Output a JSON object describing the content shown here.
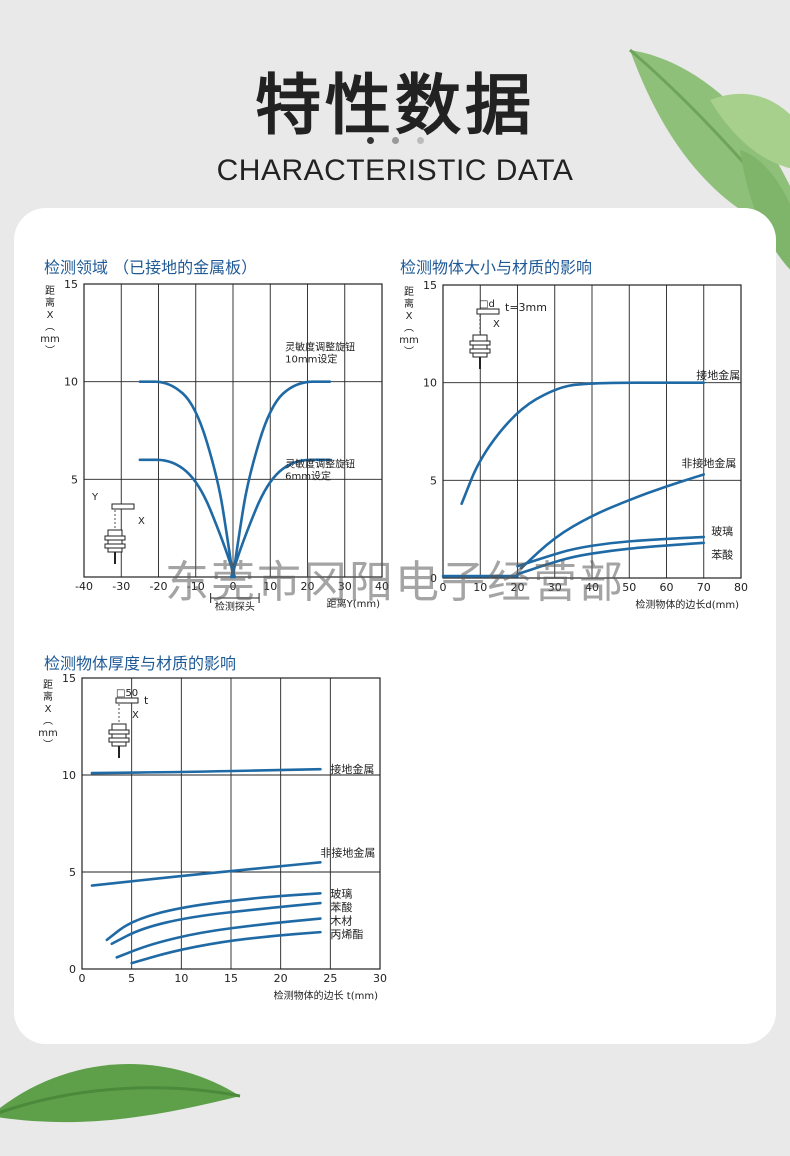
{
  "header": {
    "title_cn": "特性数据",
    "title_en": "CHARACTERISTIC DATA"
  },
  "watermark": "东莞市冈阳电子经营部",
  "colors": {
    "curve": "#1f6aa5",
    "axis": "#222222",
    "title": "#1f5a96"
  },
  "chart_data": [
    {
      "type": "line",
      "title": "检测领域 （已接地的金属板）",
      "xlabel": "距离Y(mm)",
      "ylabel_lines": [
        "距",
        "离",
        "X",
        "︵",
        "mm",
        "︶"
      ],
      "xlim": [
        -40,
        40
      ],
      "ylim": [
        0,
        15
      ],
      "x_ticks": [
        -40,
        -30,
        -20,
        -10,
        0,
        10,
        20,
        30,
        40
      ],
      "x_tick_labels": [
        "-40",
        "-30",
        "-20",
        "-10",
        "0",
        "10",
        "20",
        "30",
        "40"
      ],
      "y_ticks": [
        5,
        10,
        15
      ],
      "y_tick_labels": [
        "5",
        "10",
        "15"
      ],
      "probe_label": "检测探头",
      "probe_range": [
        -6,
        7
      ],
      "series": [
        {
          "points": [
            [
              -25,
              10
            ],
            [
              -17,
              10
            ],
            [
              -10,
              8.8
            ],
            [
              -4,
              5
            ],
            [
              -1.5,
              2
            ],
            [
              0,
              0
            ]
          ]
        },
        {
          "points": [
            [
              0,
              0
            ],
            [
              1.5,
              2
            ],
            [
              4,
              5
            ],
            [
              10,
              8.8
            ],
            [
              17,
              10
            ],
            [
              26,
              10
            ]
          ]
        },
        {
          "points": [
            [
              -25,
              6
            ],
            [
              -16,
              6
            ],
            [
              -9,
              4.8
            ],
            [
              -3,
              2
            ],
            [
              0.5,
              0
            ]
          ]
        },
        {
          "points": [
            [
              -0.5,
              0
            ],
            [
              3,
              2
            ],
            [
              9,
              4.8
            ],
            [
              16,
              6
            ],
            [
              26,
              6
            ]
          ]
        }
      ],
      "annotations": [
        {
          "lines": [
            "灵敏度调整旋钮",
            "10mm设定"
          ],
          "x": 14,
          "y": 11.6
        },
        {
          "lines": [
            "灵敏度调整旋钮",
            "6mm设定"
          ],
          "x": 14,
          "y": 5.6
        }
      ],
      "inset_labels": [
        "Y",
        "X"
      ]
    },
    {
      "type": "line",
      "title": "检测物体大小与材质的影响",
      "xlabel": "检测物体的边长d(mm)",
      "ylabel_lines": [
        "距",
        "离",
        "X",
        "︵",
        "mm",
        "︶"
      ],
      "xlim": [
        0,
        80
      ],
      "ylim": [
        0,
        15
      ],
      "x_ticks": [
        0,
        10,
        20,
        30,
        40,
        50,
        60,
        70,
        80
      ],
      "x_tick_labels": [
        "0",
        "10",
        "20",
        "30",
        "40",
        "50",
        "60",
        "70",
        "80"
      ],
      "y_ticks": [
        0,
        5,
        10,
        15
      ],
      "y_tick_labels": [
        "0",
        "5",
        "10",
        "15"
      ],
      "inset_labels": [
        "□d",
        "t=3mm",
        "X"
      ],
      "series": [
        {
          "name": "接地金属",
          "label_at": [
            68,
            10.4
          ],
          "points": [
            [
              5,
              3.8
            ],
            [
              10,
              6.2
            ],
            [
              20,
              8.6
            ],
            [
              30,
              9.7
            ],
            [
              38,
              10
            ],
            [
              70,
              10
            ]
          ]
        },
        {
          "name": "非接地金属",
          "label_at": [
            64,
            5.9
          ],
          "points": [
            [
              21,
              0.5
            ],
            [
              30,
              2.1
            ],
            [
              40,
              3.2
            ],
            [
              50,
              4.0
            ],
            [
              60,
              4.7
            ],
            [
              70,
              5.3
            ]
          ]
        },
        {
          "name": "玻璃",
          "label_at": [
            72,
            2.4
          ],
          "points": [
            [
              20,
              0.6
            ],
            [
              28,
              1.1
            ],
            [
              35,
              1.5
            ],
            [
              45,
              1.8
            ],
            [
              55,
              1.95
            ],
            [
              70,
              2.1
            ]
          ]
        },
        {
          "name": "苯酸",
          "label_at": [
            72,
            1.2
          ],
          "points": [
            [
              20,
              0.2
            ],
            [
              28,
              0.7
            ],
            [
              35,
              1.1
            ],
            [
              45,
              1.4
            ],
            [
              55,
              1.6
            ],
            [
              70,
              1.8
            ]
          ]
        },
        {
          "points": [
            [
              0,
              0.1
            ],
            [
              20,
              0.1
            ]
          ]
        }
      ]
    },
    {
      "type": "line",
      "title": "检测物体厚度与材质的影响",
      "xlabel": "检测物体的边长 t(mm)",
      "ylabel_lines": [
        "距",
        "离",
        "X",
        "︵",
        "mm",
        "︶"
      ],
      "xlim": [
        0,
        30
      ],
      "ylim": [
        0,
        15
      ],
      "x_ticks": [
        0,
        5,
        10,
        15,
        20,
        25,
        30
      ],
      "x_tick_labels": [
        "0",
        "5",
        "10",
        "15",
        "20",
        "25",
        "30"
      ],
      "y_ticks": [
        0,
        5,
        10,
        15
      ],
      "y_tick_labels": [
        "0",
        "5",
        "10",
        "15"
      ],
      "inset_labels": [
        "□50",
        "t",
        "X"
      ],
      "series": [
        {
          "name": "接地金属",
          "label_at": [
            25,
            10.3
          ],
          "points": [
            [
              1,
              10.1
            ],
            [
              10,
              10.15
            ],
            [
              24,
              10.3
            ]
          ]
        },
        {
          "name": "非接地金属",
          "label_at": [
            24,
            6.0
          ],
          "points": [
            [
              1,
              4.3
            ],
            [
              10,
              4.8
            ],
            [
              20,
              5.3
            ],
            [
              24,
              5.5
            ]
          ]
        },
        {
          "name": "玻璃",
          "label_at": [
            25,
            3.9
          ],
          "points": [
            [
              2.5,
              1.5
            ],
            [
              5,
              2.5
            ],
            [
              10,
              3.2
            ],
            [
              18,
              3.7
            ],
            [
              24,
              3.9
            ]
          ]
        },
        {
          "name": "苯酸",
          "label_at": [
            25,
            3.2
          ],
          "points": [
            [
              3,
              1.3
            ],
            [
              6,
              2.1
            ],
            [
              11,
              2.7
            ],
            [
              18,
              3.1
            ],
            [
              24,
              3.4
            ]
          ]
        },
        {
          "name": "木材",
          "label_at": [
            25,
            2.5
          ],
          "points": [
            [
              3.5,
              0.6
            ],
            [
              7,
              1.3
            ],
            [
              12,
              1.9
            ],
            [
              18,
              2.3
            ],
            [
              24,
              2.6
            ]
          ]
        },
        {
          "name": "丙烯酯",
          "label_at": [
            25,
            1.8
          ],
          "points": [
            [
              5,
              0.3
            ],
            [
              9,
              0.9
            ],
            [
              14,
              1.4
            ],
            [
              19,
              1.7
            ],
            [
              24,
              1.9
            ]
          ]
        }
      ]
    }
  ]
}
